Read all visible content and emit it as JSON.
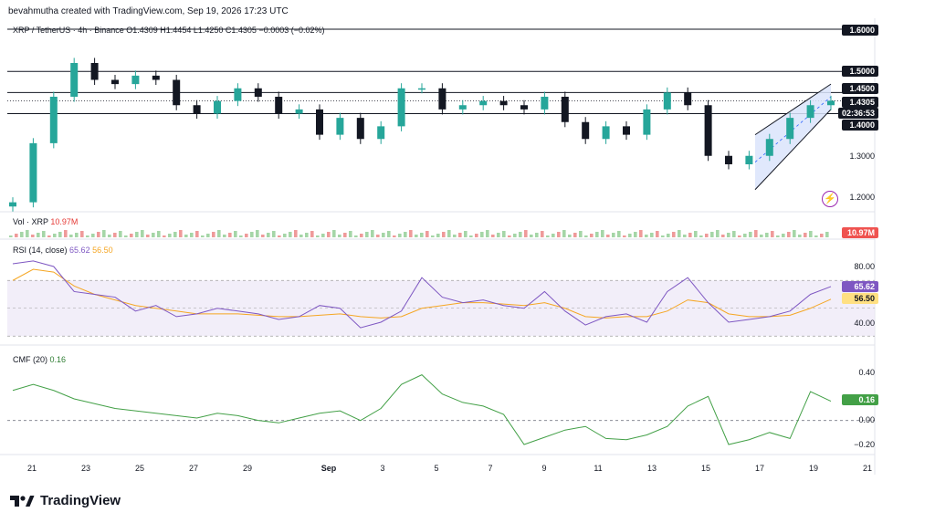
{
  "header": "bevahmutha created with TradingView.com, Sep 19, 2026 17:23 UTC",
  "symbol_legend": {
    "name": "XRP / TetherUS · 4h · Binance",
    "o": "O1.4309",
    "h": "H1.4454",
    "l": "L1.4250",
    "c": "C1.4305",
    "chg": "−0.0003 (−0.02%)"
  },
  "price_tags": {
    "current": "1.4305",
    "countdown": "02:36:53"
  },
  "price_axis": [
    "1.6000",
    "1.5000",
    "1.4500",
    "1.4000",
    "1.3000",
    "1.2000"
  ],
  "volume_legend": {
    "label": "Vol · XRP",
    "value": "10.97M"
  },
  "volume_tag": "10.97M",
  "rsi_legend": {
    "label": "RSI (14, close)",
    "rsi": "65.62",
    "ma": "56.50"
  },
  "rsi_axis": [
    "80.00",
    "40.00"
  ],
  "rsi_tags": {
    "rsi": "65.62",
    "ma": "56.50"
  },
  "cmf_legend": {
    "label": "CMF (20)",
    "value": "0.16"
  },
  "cmf_axis": [
    "0.40",
    "0.00",
    "−0.20"
  ],
  "cmf_tag": "0.16",
  "x_axis": [
    "21",
    "23",
    "25",
    "27",
    "29",
    "Sep",
    "3",
    "5",
    "7",
    "9",
    "11",
    "13",
    "15",
    "17",
    "19",
    "21"
  ],
  "brand": "TradingView",
  "colors": {
    "up": "#26a69a",
    "down": "#131722",
    "rsi": "#7e57c2",
    "rsi_ma": "#f5a623",
    "cmf": "#43a047",
    "channel": "#dbe4fb"
  },
  "chart_data": [
    {
      "type": "candlestick",
      "title": "XRP / TetherUS · 4h · Binance",
      "x_range": [
        "Aug 20",
        "Sep 21"
      ],
      "ylim": [
        1.17,
        1.62
      ],
      "horizontal_levels": [
        1.6,
        1.5,
        1.45,
        1.4
      ],
      "last_price": 1.4305,
      "close_points": [
        {
          "x": "Aug 20",
          "y": 1.19
        },
        {
          "x": "Aug 21",
          "y": 1.33
        },
        {
          "x": "Aug 21.5",
          "y": 1.44
        },
        {
          "x": "Aug 22",
          "y": 1.52
        },
        {
          "x": "Aug 22.5",
          "y": 1.48
        },
        {
          "x": "Aug 23",
          "y": 1.47
        },
        {
          "x": "Aug 24",
          "y": 1.49
        },
        {
          "x": "Aug 25",
          "y": 1.48
        },
        {
          "x": "Aug 26",
          "y": 1.42
        },
        {
          "x": "Aug 26.5",
          "y": 1.4
        },
        {
          "x": "Aug 27",
          "y": 1.43
        },
        {
          "x": "Aug 27.5",
          "y": 1.46
        },
        {
          "x": "Aug 28",
          "y": 1.44
        },
        {
          "x": "Aug 29",
          "y": 1.4
        },
        {
          "x": "Aug 30",
          "y": 1.41
        },
        {
          "x": "Aug 31",
          "y": 1.35
        },
        {
          "x": "Sep 1",
          "y": 1.39
        },
        {
          "x": "Sep 2",
          "y": 1.34
        },
        {
          "x": "Sep 3",
          "y": 1.37
        },
        {
          "x": "Sep 3.5",
          "y": 1.46
        },
        {
          "x": "Sep 4",
          "y": 1.46
        },
        {
          "x": "Sep 4.5",
          "y": 1.41
        },
        {
          "x": "Sep 5",
          "y": 1.42
        },
        {
          "x": "Sep 6",
          "y": 1.43
        },
        {
          "x": "Sep 7",
          "y": 1.42
        },
        {
          "x": "Sep 8",
          "y": 1.41
        },
        {
          "x": "Sep 9",
          "y": 1.44
        },
        {
          "x": "Sep 10",
          "y": 1.38
        },
        {
          "x": "Sep 11",
          "y": 1.34
        },
        {
          "x": "Sep 12",
          "y": 1.37
        },
        {
          "x": "Sep 13",
          "y": 1.35
        },
        {
          "x": "Sep 14",
          "y": 1.41
        },
        {
          "x": "Sep 14.5",
          "y": 1.45
        },
        {
          "x": "Sep 15",
          "y": 1.42
        },
        {
          "x": "Sep 15.5",
          "y": 1.3
        },
        {
          "x": "Sep 16",
          "y": 1.28
        },
        {
          "x": "Sep 17",
          "y": 1.3
        },
        {
          "x": "Sep 18",
          "y": 1.34
        },
        {
          "x": "Sep 18.5",
          "y": 1.39
        },
        {
          "x": "Sep 19",
          "y": 1.42
        },
        {
          "x": "Sep 19.5",
          "y": 1.4305
        }
      ]
    },
    {
      "type": "bar",
      "title": "Vol · XRP",
      "last_value": "10.97M"
    },
    {
      "type": "line",
      "title": "RSI (14, close)",
      "ylim": [
        30,
        90
      ],
      "bands": [
        70,
        30
      ],
      "series": [
        {
          "name": "RSI",
          "points": [
            82,
            84,
            80,
            62,
            60,
            58,
            48,
            52,
            44,
            46,
            50,
            48,
            46,
            42,
            44,
            52,
            50,
            36,
            40,
            48,
            72,
            58,
            54,
            56,
            52,
            50,
            62,
            48,
            38,
            44,
            46,
            40,
            62,
            72,
            54,
            40,
            42,
            44,
            48,
            60,
            65.62
          ]
        },
        {
          "name": "MA",
          "points": [
            70,
            78,
            76,
            66,
            60,
            56,
            52,
            50,
            48,
            46,
            46,
            46,
            45,
            44,
            44,
            45,
            46,
            44,
            43,
            44,
            50,
            52,
            54,
            54,
            53,
            52,
            54,
            50,
            44,
            43,
            44,
            44,
            48,
            56,
            54,
            46,
            44,
            44,
            45,
            50,
            56.5
          ]
        }
      ]
    },
    {
      "type": "line",
      "title": "CMF (20)",
      "ylim": [
        -0.25,
        0.45
      ],
      "series": [
        {
          "name": "CMF",
          "points": [
            0.25,
            0.3,
            0.25,
            0.18,
            0.14,
            0.1,
            0.08,
            0.06,
            0.04,
            0.02,
            0.06,
            0.04,
            0.0,
            -0.02,
            0.02,
            0.06,
            0.08,
            0.0,
            0.1,
            0.3,
            0.38,
            0.22,
            0.15,
            0.12,
            0.05,
            -0.2,
            -0.14,
            -0.08,
            -0.05,
            -0.15,
            -0.16,
            -0.12,
            -0.05,
            0.12,
            0.2,
            -0.2,
            -0.16,
            -0.1,
            -0.15,
            0.24,
            0.16
          ]
        }
      ]
    }
  ]
}
